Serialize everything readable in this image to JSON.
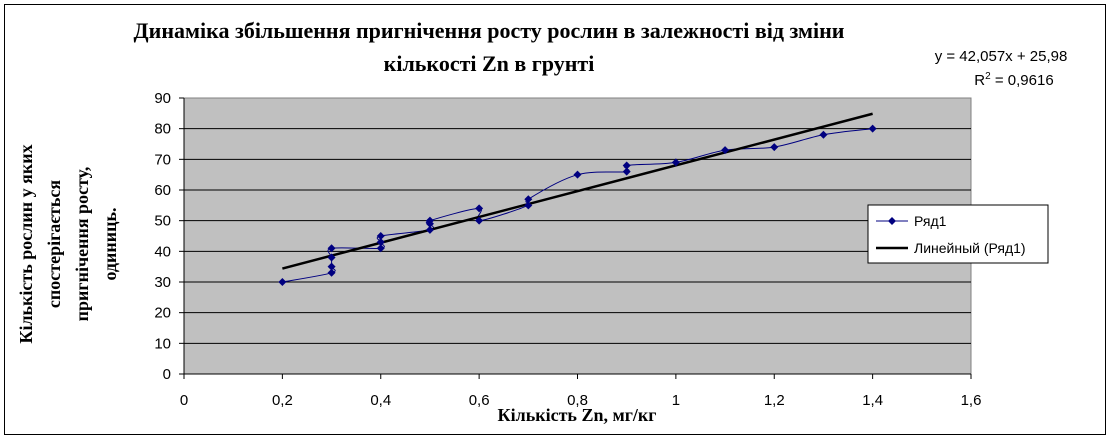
{
  "chart_data": {
    "type": "scatter",
    "title_line1": "Динаміка збільшення пригнічення росту рослин в залежності від зміни",
    "title_line2": "кількості  Zn в грунті",
    "xlabel": "Кількість Zn, мг/кг",
    "ylabel_lines": [
      "Кількість рослин у яких",
      "спостерігається",
      "пригнічення  росту,",
      "одиниць."
    ],
    "xlim": [
      0,
      1.6
    ],
    "ylim": [
      0,
      90
    ],
    "x_ticks": [
      0,
      0.2,
      0.4,
      0.6,
      0.8,
      1,
      1.2,
      1.4,
      1.6
    ],
    "x_tick_labels": [
      "0",
      "0,2",
      "0,4",
      "0,6",
      "0,8",
      "1",
      "1,2",
      "1,4",
      "1,6"
    ],
    "y_ticks": [
      0,
      10,
      20,
      30,
      40,
      50,
      60,
      70,
      80,
      90
    ],
    "y_tick_labels": [
      "0",
      "10",
      "20",
      "30",
      "40",
      "50",
      "60",
      "70",
      "80",
      "90"
    ],
    "grid": true,
    "plot_background": "#c0c0c0",
    "series": [
      {
        "name": "Ряд1",
        "color": "#000080",
        "marker": "diamond",
        "x": [
          0.2,
          0.3,
          0.3,
          0.3,
          0.3,
          0.4,
          0.4,
          0.4,
          0.5,
          0.5,
          0.5,
          0.6,
          0.6,
          0.7,
          0.7,
          0.8,
          0.9,
          0.9,
          1.0,
          1.1,
          1.2,
          1.3,
          1.4
        ],
        "y": [
          30,
          33,
          35,
          38,
          41,
          41,
          43,
          45,
          47,
          49,
          50,
          54,
          50,
          55,
          57,
          65,
          66,
          68,
          69,
          73,
          74,
          78,
          80
        ]
      }
    ],
    "trendline": {
      "name": "Линейный (Ряд1)",
      "color": "#000000",
      "slope": 42.057,
      "intercept": 25.98,
      "x_range": [
        0.2,
        1.4
      ],
      "equation": "y = 42,057x + 25,98",
      "r2_prefix": "R",
      "r2_sup": "2",
      "r2_value": " = 0,9616"
    },
    "legend_position": "right"
  }
}
